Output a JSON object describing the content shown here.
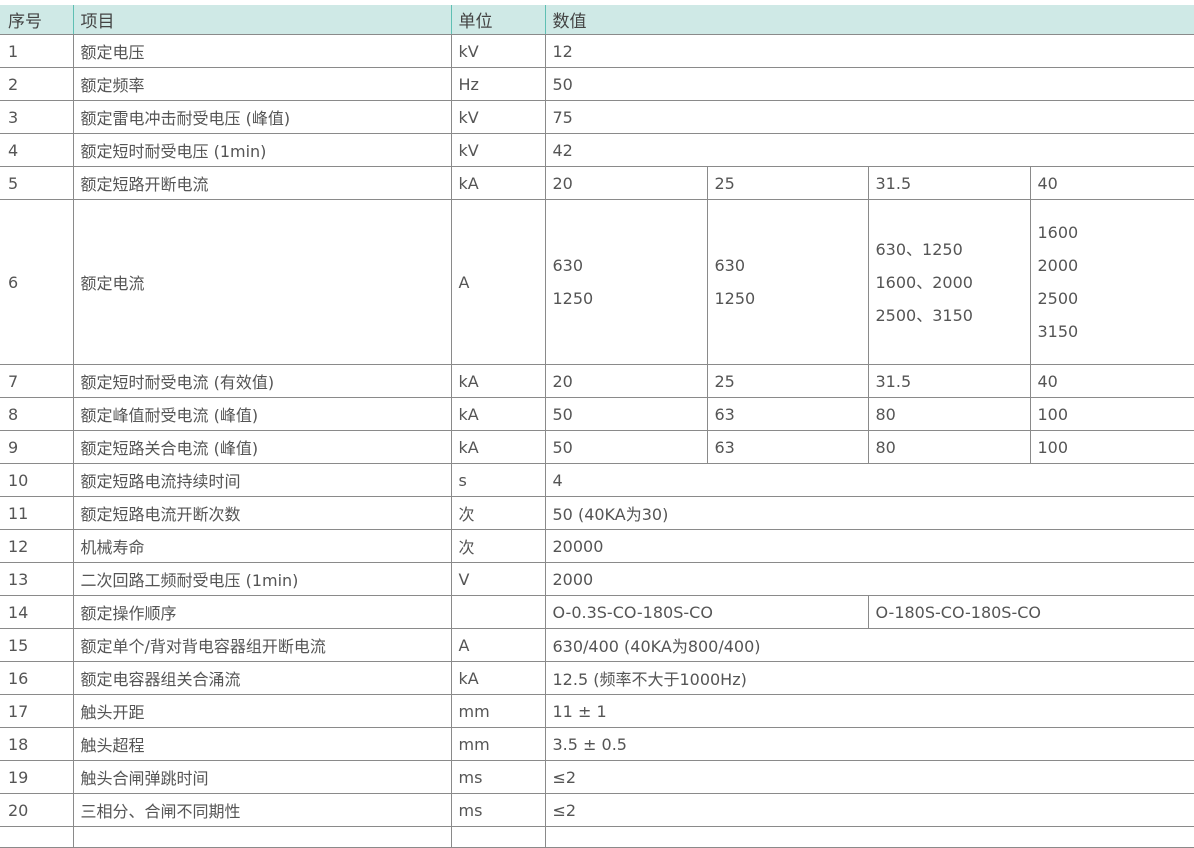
{
  "headers": {
    "no": "序号",
    "item": "项目",
    "unit": "单位",
    "value": "数值"
  },
  "rows": [
    {
      "no": "1",
      "item": "额定电压",
      "unit": "kV",
      "values": [
        "12"
      ]
    },
    {
      "no": "2",
      "item": "额定频率",
      "unit": "Hz",
      "values": [
        "50"
      ]
    },
    {
      "no": "3",
      "item": "额定雷电冲击耐受电压 (峰值)",
      "unit": "kV",
      "values": [
        "75"
      ]
    },
    {
      "no": "4",
      "item": "额定短时耐受电压 (1min)",
      "unit": "kV",
      "values": [
        "42"
      ]
    },
    {
      "no": "5",
      "item": "额定短路开断电流",
      "unit": "kA",
      "values": [
        "20",
        "25",
        "31.5",
        "40"
      ]
    },
    {
      "no": "6",
      "item": "额定电流",
      "unit": "A",
      "values": [
        [
          "630",
          "1250"
        ],
        [
          "630",
          "1250"
        ],
        [
          "630、1250",
          "1600、2000",
          "2500、3150"
        ],
        [
          "1600",
          "2000",
          "2500",
          "3150"
        ]
      ]
    },
    {
      "no": "7",
      "item": "额定短时耐受电流 (有效值)",
      "unit": "kA",
      "values": [
        "20",
        "25",
        "31.5",
        "40"
      ]
    },
    {
      "no": "8",
      "item": "额定峰值耐受电流 (峰值)",
      "unit": "kA",
      "values": [
        "50",
        "63",
        "80",
        "100"
      ]
    },
    {
      "no": "9",
      "item": "额定短路关合电流 (峰值)",
      "unit": "kA",
      "values": [
        "50",
        "63",
        "80",
        "100"
      ]
    },
    {
      "no": "10",
      "item": "额定短路电流持续时间",
      "unit": "s",
      "values": [
        "4"
      ]
    },
    {
      "no": "11",
      "item": "额定短路电流开断次数",
      "unit": "次",
      "values": [
        "50 (40KA为30)"
      ]
    },
    {
      "no": "12",
      "item": "机械寿命",
      "unit": "次",
      "values": [
        "20000"
      ]
    },
    {
      "no": "13",
      "item": "二次回路工频耐受电压 (1min)",
      "unit": "V",
      "values": [
        "2000"
      ]
    },
    {
      "no": "14",
      "item": "额定操作顺序",
      "unit": "",
      "values": [
        "O-0.3S-CO-180S-CO",
        "O-180S-CO-180S-CO"
      ]
    },
    {
      "no": "15",
      "item": "额定单个/背对背电容器组开断电流",
      "unit": "A",
      "values": [
        "630/400 (40KA为800/400)"
      ]
    },
    {
      "no": "16",
      "item": "额定电容器组关合涌流",
      "unit": "kA",
      "values": [
        "12.5 (频率不大于1000Hz)"
      ]
    },
    {
      "no": "17",
      "item": "触头开距",
      "unit": "mm",
      "values": [
        "11 ± 1"
      ]
    },
    {
      "no": "18",
      "item": "触头超程",
      "unit": "mm",
      "values": [
        "3.5 ± 0.5"
      ]
    },
    {
      "no": "19",
      "item": "触头合闸弹跳时间",
      "unit": "ms",
      "values": [
        "≤2"
      ]
    },
    {
      "no": "20",
      "item": "三相分、合闸不同期性",
      "unit": "ms",
      "values": [
        "≤2"
      ]
    }
  ],
  "colors": {
    "header_bg": "#cfe9e6",
    "border": "#8a8a8a",
    "text": "#555555"
  }
}
